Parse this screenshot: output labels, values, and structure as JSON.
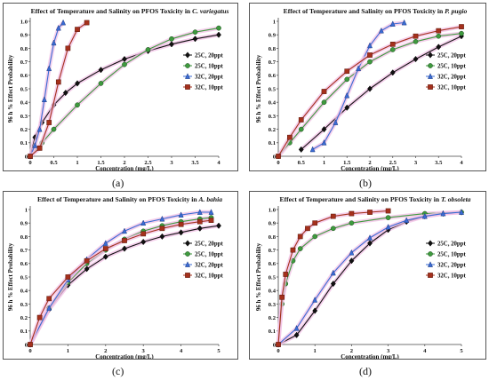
{
  "figure": {
    "panel_letters": [
      "(a)",
      "(b)",
      "(c)",
      "(d)"
    ]
  },
  "colors": {
    "25C, 20ppt": "#111111",
    "25C, 10ppt": "#3e9a3e",
    "32C, 20ppt": "#3a6bd4",
    "32C, 10ppt": "#a5301c",
    "halo": "#f2c0e6"
  },
  "markers": {
    "25C, 20ppt": "diamond",
    "25C, 10ppt": "circle",
    "32C, 20ppt": "triangle",
    "32C, 10ppt": "square"
  },
  "chart_data": [
    {
      "panel": "(a)",
      "type": "line",
      "title": "Effect of Temperature and Salinity on PFOS Toxicity in",
      "title_species": "C. variegatus",
      "xlabel": "Concentration (mg/L)",
      "ylabel": "96 h % Effect Probability",
      "xlim": [
        0,
        4
      ],
      "ylim": [
        0,
        1.0
      ],
      "xticks": [
        "0",
        "0.5",
        "1",
        "1.5",
        "2",
        "2.5",
        "3",
        "3.5",
        "4"
      ],
      "yticks": [
        "0",
        "0.1",
        "0.2",
        "0.3",
        "0.4",
        "0.5",
        "0.6",
        "0.7",
        "0.8",
        "0.9",
        "1.0"
      ],
      "legend_position": "right",
      "grid": false,
      "series": [
        {
          "name": "25C, 20ppt",
          "x": [
            0,
            0.1,
            0.25,
            0.5,
            0.75,
            1,
            1.5,
            2,
            2.5,
            3,
            3.5,
            4
          ],
          "y": [
            0,
            0.14,
            0.25,
            0.38,
            0.47,
            0.54,
            0.64,
            0.72,
            0.78,
            0.83,
            0.87,
            0.9
          ]
        },
        {
          "name": "25C, 10ppt",
          "x": [
            0,
            0.25,
            0.5,
            1,
            1.5,
            2,
            2.5,
            3,
            3.5,
            4
          ],
          "y": [
            0,
            0.1,
            0.2,
            0.38,
            0.54,
            0.68,
            0.79,
            0.87,
            0.92,
            0.95
          ]
        },
        {
          "name": "32C, 20ppt",
          "x": [
            0,
            0.1,
            0.2,
            0.3,
            0.4,
            0.5,
            0.6,
            0.7
          ],
          "y": [
            0,
            0.08,
            0.2,
            0.42,
            0.65,
            0.84,
            0.95,
            0.99
          ]
        },
        {
          "name": "32C, 10ppt",
          "x": [
            0,
            0.2,
            0.4,
            0.6,
            0.8,
            1.0,
            1.2
          ],
          "y": [
            0,
            0.06,
            0.25,
            0.55,
            0.8,
            0.94,
            0.99
          ]
        }
      ]
    },
    {
      "panel": "(b)",
      "type": "line",
      "title": "Effect of Temperature and Salinity on PFOS Toxicity in",
      "title_species": "P. pugio",
      "xlabel": "Concentration (mg/L)",
      "ylabel": "96 h % Effect Probability",
      "xlim": [
        0,
        4
      ],
      "ylim": [
        0,
        1.0
      ],
      "xticks": [
        "0",
        "0.5",
        "1",
        "1.5",
        "2",
        "2.5",
        "3",
        "3.5",
        "4"
      ],
      "yticks": [
        "0",
        "0.1",
        "0.2",
        "0.3",
        "0.4",
        "0.5",
        "0.6",
        "0.7",
        "0.8",
        "0.9",
        "1"
      ],
      "legend_position": "right",
      "grid": false,
      "series": [
        {
          "name": "25C, 20ppt",
          "x": [
            0.5,
            1,
            1.5,
            2,
            2.5,
            3,
            3.5,
            4
          ],
          "y": [
            0.05,
            0.2,
            0.36,
            0.5,
            0.62,
            0.72,
            0.81,
            0.89
          ]
        },
        {
          "name": "25C, 10ppt",
          "x": [
            0,
            0.25,
            0.5,
            1,
            1.5,
            2,
            2.5,
            3,
            3.5,
            4
          ],
          "y": [
            0,
            0.1,
            0.2,
            0.4,
            0.57,
            0.7,
            0.79,
            0.85,
            0.89,
            0.91
          ]
        },
        {
          "name": "32C, 20ppt",
          "x": [
            0.75,
            1,
            1.25,
            1.5,
            1.75,
            2,
            2.25,
            2.5,
            2.75
          ],
          "y": [
            0.05,
            0.1,
            0.25,
            0.45,
            0.65,
            0.82,
            0.93,
            0.98,
            0.99
          ]
        },
        {
          "name": "32C, 10ppt",
          "x": [
            0,
            0.25,
            0.5,
            1,
            1.5,
            2,
            2.5,
            3,
            3.5,
            4
          ],
          "y": [
            0,
            0.14,
            0.27,
            0.48,
            0.63,
            0.75,
            0.83,
            0.89,
            0.93,
            0.96
          ]
        }
      ]
    },
    {
      "panel": "(c)",
      "type": "line",
      "title": "Effect of Temperature and Salinity on PFOS Toxicity in",
      "title_species": "A. bahia",
      "xlabel": "Concentration (mg/L)",
      "ylabel": "96 h % Effect Probability",
      "xlim": [
        0,
        5
      ],
      "ylim": [
        0,
        1.0
      ],
      "xticks": [
        "0",
        "1",
        "2",
        "3",
        "4",
        "5"
      ],
      "yticks": [
        "0",
        "0.1",
        "0.2",
        "0.3",
        "0.4",
        "0.5",
        "0.6",
        "0.7",
        "0.8",
        "0.9",
        "1"
      ],
      "legend_position": "right",
      "grid": false,
      "series": [
        {
          "name": "25C, 20ppt",
          "x": [
            0,
            0.5,
            1,
            1.5,
            2,
            2.5,
            3,
            3.5,
            4,
            4.5,
            5
          ],
          "y": [
            0,
            0.26,
            0.44,
            0.56,
            0.65,
            0.71,
            0.76,
            0.8,
            0.83,
            0.86,
            0.88
          ]
        },
        {
          "name": "25C, 10ppt",
          "x": [
            0,
            0.5,
            1,
            1.5,
            2,
            2.5,
            3,
            3.5,
            4,
            4.5,
            4.8
          ],
          "y": [
            0,
            0.27,
            0.46,
            0.6,
            0.7,
            0.78,
            0.84,
            0.88,
            0.91,
            0.93,
            0.94
          ]
        },
        {
          "name": "32C, 20ppt",
          "x": [
            0,
            0.5,
            1,
            1.5,
            2,
            2.5,
            3,
            3.5,
            4,
            4.5,
            4.8
          ],
          "y": [
            0,
            0.27,
            0.48,
            0.63,
            0.75,
            0.84,
            0.9,
            0.93,
            0.96,
            0.98,
            0.98
          ]
        },
        {
          "name": "32C, 10ppt",
          "x": [
            0,
            0.25,
            0.5,
            1,
            1.5,
            2,
            2.5,
            3,
            3.5,
            4,
            4.5,
            4.8
          ],
          "y": [
            0,
            0.2,
            0.34,
            0.5,
            0.62,
            0.71,
            0.77,
            0.82,
            0.86,
            0.89,
            0.91,
            0.92
          ]
        }
      ]
    },
    {
      "panel": "(d)",
      "type": "line",
      "title": "Effect of Temperature and Salinity on PFOS Toxicity in",
      "title_species": "T. obsoleta",
      "xlabel": "Concentration (mg/L)",
      "ylabel": "96 h % Effect Probability",
      "xlim": [
        0,
        5
      ],
      "ylim": [
        0,
        1.0
      ],
      "xticks": [
        "0",
        "1",
        "2",
        "3",
        "4",
        "5"
      ],
      "yticks": [
        "0",
        "0.1",
        "0.2",
        "0.3",
        "0.4",
        "0.5",
        "0.6",
        "0.7",
        "0.8",
        "0.9",
        "1.0"
      ],
      "legend_position": "right",
      "grid": false,
      "series": [
        {
          "name": "25C, 20ppt",
          "x": [
            0,
            0.5,
            1,
            1.5,
            2,
            2.5,
            3,
            3.5,
            4,
            4.5,
            5
          ],
          "y": [
            0,
            0.07,
            0.25,
            0.45,
            0.62,
            0.75,
            0.85,
            0.91,
            0.95,
            0.97,
            0.98
          ]
        },
        {
          "name": "25C, 10ppt",
          "x": [
            0,
            0.1,
            0.2,
            0.4,
            0.6,
            1,
            1.5,
            2,
            3,
            4,
            5
          ],
          "y": [
            0,
            0.3,
            0.45,
            0.62,
            0.71,
            0.8,
            0.86,
            0.9,
            0.94,
            0.97,
            0.98
          ]
        },
        {
          "name": "32C, 20ppt",
          "x": [
            0,
            0.5,
            1,
            1.5,
            2,
            2.5,
            3,
            3.5,
            4,
            4.5,
            5
          ],
          "y": [
            0,
            0.12,
            0.33,
            0.53,
            0.68,
            0.79,
            0.87,
            0.92,
            0.95,
            0.97,
            0.98
          ]
        },
        {
          "name": "32C, 10ppt",
          "x": [
            0,
            0.1,
            0.2,
            0.4,
            0.6,
            0.8,
            1,
            1.5,
            2,
            2.5,
            3
          ],
          "y": [
            0,
            0.35,
            0.52,
            0.7,
            0.8,
            0.86,
            0.9,
            0.95,
            0.97,
            0.98,
            0.99
          ]
        }
      ]
    }
  ]
}
